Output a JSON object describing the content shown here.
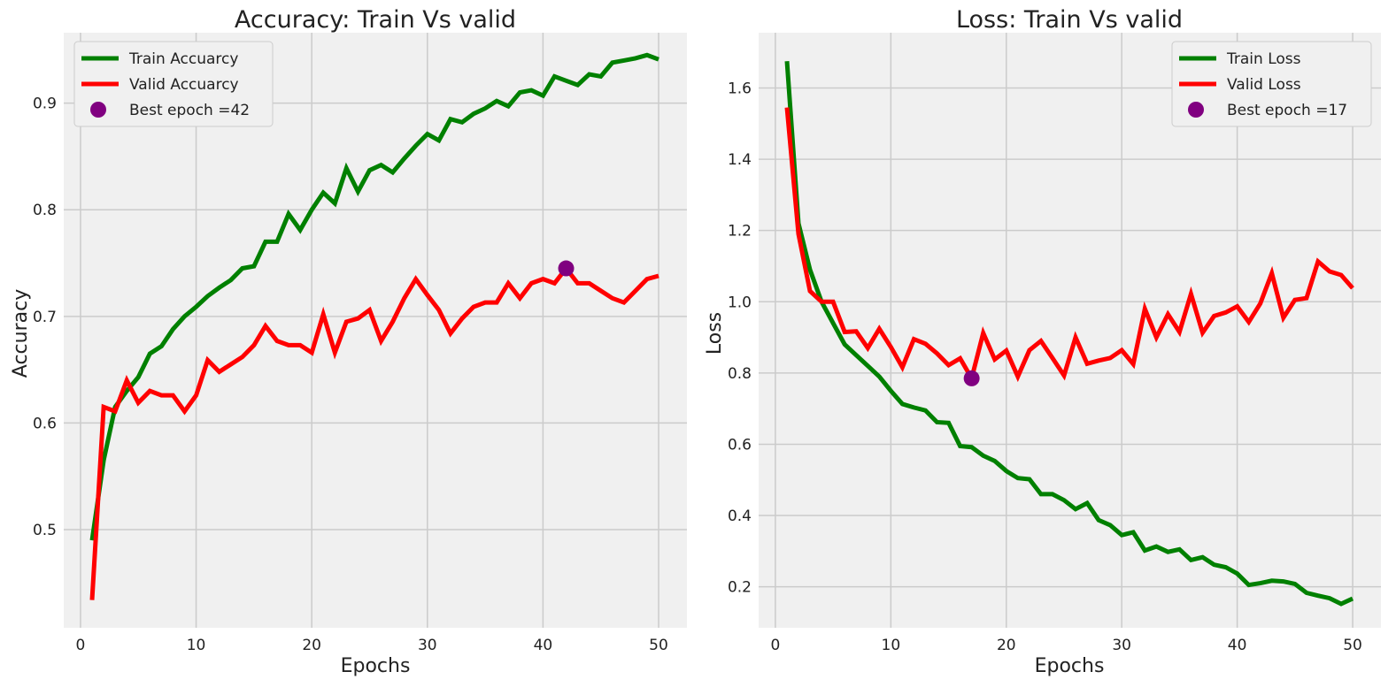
{
  "chart_data": [
    {
      "type": "line",
      "title": "Accuracy: Train Vs valid",
      "xlabel": "Epochs",
      "ylabel": "Accuracy",
      "xlim": [
        -1.45,
        52.45
      ],
      "ylim": [
        0.408,
        0.966
      ],
      "xticks": [
        0,
        10,
        20,
        30,
        40,
        50
      ],
      "yticks": [
        0.5,
        0.6,
        0.7,
        0.8,
        0.9
      ],
      "xtick_labels": [
        "0",
        "10",
        "20",
        "30",
        "40",
        "50"
      ],
      "ytick_labels": [
        "0.5",
        "0.6",
        "0.7",
        "0.8",
        "0.9"
      ],
      "grid": true,
      "legend_position": "upper-left",
      "x": [
        1,
        2,
        3,
        4,
        5,
        6,
        7,
        8,
        9,
        10,
        11,
        12,
        13,
        14,
        15,
        16,
        17,
        18,
        19,
        20,
        21,
        22,
        23,
        24,
        25,
        26,
        27,
        28,
        29,
        30,
        31,
        32,
        33,
        34,
        35,
        36,
        37,
        38,
        39,
        40,
        41,
        42,
        43,
        44,
        45,
        46,
        47,
        48,
        49,
        50
      ],
      "series": [
        {
          "name": "Train Accuarcy",
          "color": "#008000",
          "values": [
            0.49,
            0.565,
            0.615,
            0.63,
            0.643,
            0.665,
            0.672,
            0.688,
            0.7,
            0.709,
            0.719,
            0.727,
            0.734,
            0.745,
            0.747,
            0.77,
            0.77,
            0.796,
            0.781,
            0.8,
            0.816,
            0.806,
            0.839,
            0.817,
            0.837,
            0.842,
            0.835,
            0.848,
            0.86,
            0.871,
            0.865,
            0.885,
            0.882,
            0.89,
            0.895,
            0.902,
            0.897,
            0.91,
            0.912,
            0.907,
            0.925,
            0.921,
            0.917,
            0.927,
            0.925,
            0.938,
            0.94,
            0.942,
            0.945,
            0.941
          ]
        },
        {
          "name": "Valid Accuarcy",
          "color": "#ff0000",
          "values": [
            0.434,
            0.615,
            0.611,
            0.64,
            0.619,
            0.63,
            0.626,
            0.626,
            0.611,
            0.626,
            0.659,
            0.648,
            0.655,
            0.662,
            0.673,
            0.691,
            0.677,
            0.673,
            0.673,
            0.666,
            0.702,
            0.666,
            0.695,
            0.698,
            0.706,
            0.677,
            0.695,
            0.717,
            0.735,
            0.72,
            0.706,
            0.684,
            0.698,
            0.709,
            0.713,
            0.713,
            0.731,
            0.717,
            0.731,
            0.735,
            0.731,
            0.745,
            0.731,
            0.731,
            0.724,
            0.717,
            0.713,
            0.724,
            0.735,
            0.738
          ]
        }
      ],
      "best_point": {
        "label": "Best epoch =42",
        "x": 42,
        "y": 0.745,
        "color": "#800080"
      }
    },
    {
      "type": "line",
      "title": "Loss: Train Vs valid",
      "xlabel": "Epochs",
      "ylabel": "Loss",
      "xlim": [
        -1.45,
        52.45
      ],
      "ylim": [
        0.085,
        1.755
      ],
      "xticks": [
        0,
        10,
        20,
        30,
        40,
        50
      ],
      "yticks": [
        0.2,
        0.4,
        0.6,
        0.8,
        1.0,
        1.2,
        1.4,
        1.6
      ],
      "xtick_labels": [
        "0",
        "10",
        "20",
        "30",
        "40",
        "50"
      ],
      "ytick_labels": [
        "0.2",
        "0.4",
        "0.6",
        "0.8",
        "1.0",
        "1.2",
        "1.4",
        "1.6"
      ],
      "grid": true,
      "legend_position": "upper-right",
      "x": [
        1,
        2,
        3,
        4,
        5,
        6,
        7,
        8,
        9,
        10,
        11,
        12,
        13,
        14,
        15,
        16,
        17,
        18,
        19,
        20,
        21,
        22,
        23,
        24,
        25,
        26,
        27,
        28,
        29,
        30,
        31,
        32,
        33,
        34,
        35,
        36,
        37,
        38,
        39,
        40,
        41,
        42,
        43,
        44,
        45,
        46,
        47,
        48,
        49,
        50
      ],
      "series": [
        {
          "name": "Train Loss",
          "color": "#008000",
          "values": [
            1.675,
            1.22,
            1.09,
            1.0,
            0.94,
            0.88,
            0.85,
            0.82,
            0.79,
            0.75,
            0.713,
            0.703,
            0.695,
            0.662,
            0.66,
            0.595,
            0.592,
            0.568,
            0.553,
            0.525,
            0.505,
            0.502,
            0.46,
            0.46,
            0.443,
            0.418,
            0.435,
            0.387,
            0.373,
            0.345,
            0.353,
            0.302,
            0.313,
            0.298,
            0.305,
            0.275,
            0.283,
            0.262,
            0.255,
            0.237,
            0.205,
            0.21,
            0.217,
            0.215,
            0.208,
            0.183,
            0.175,
            0.168,
            0.152,
            0.167
          ]
        },
        {
          "name": "Valid Loss",
          "color": "#ff0000",
          "values": [
            1.545,
            1.19,
            1.03,
            1.0,
            1.0,
            0.915,
            0.917,
            0.87,
            0.924,
            0.873,
            0.816,
            0.895,
            0.882,
            0.855,
            0.822,
            0.841,
            0.785,
            0.912,
            0.838,
            0.863,
            0.79,
            0.864,
            0.89,
            0.842,
            0.793,
            0.9,
            0.826,
            0.835,
            0.842,
            0.864,
            0.825,
            0.98,
            0.9,
            0.965,
            0.915,
            1.022,
            0.913,
            0.96,
            0.97,
            0.987,
            0.943,
            0.995,
            1.08,
            0.955,
            1.005,
            1.01,
            1.113,
            1.085,
            1.075,
            1.038
          ]
        }
      ],
      "best_point": {
        "label": "Best epoch =17",
        "x": 17,
        "y": 0.785,
        "color": "#800080"
      }
    }
  ]
}
